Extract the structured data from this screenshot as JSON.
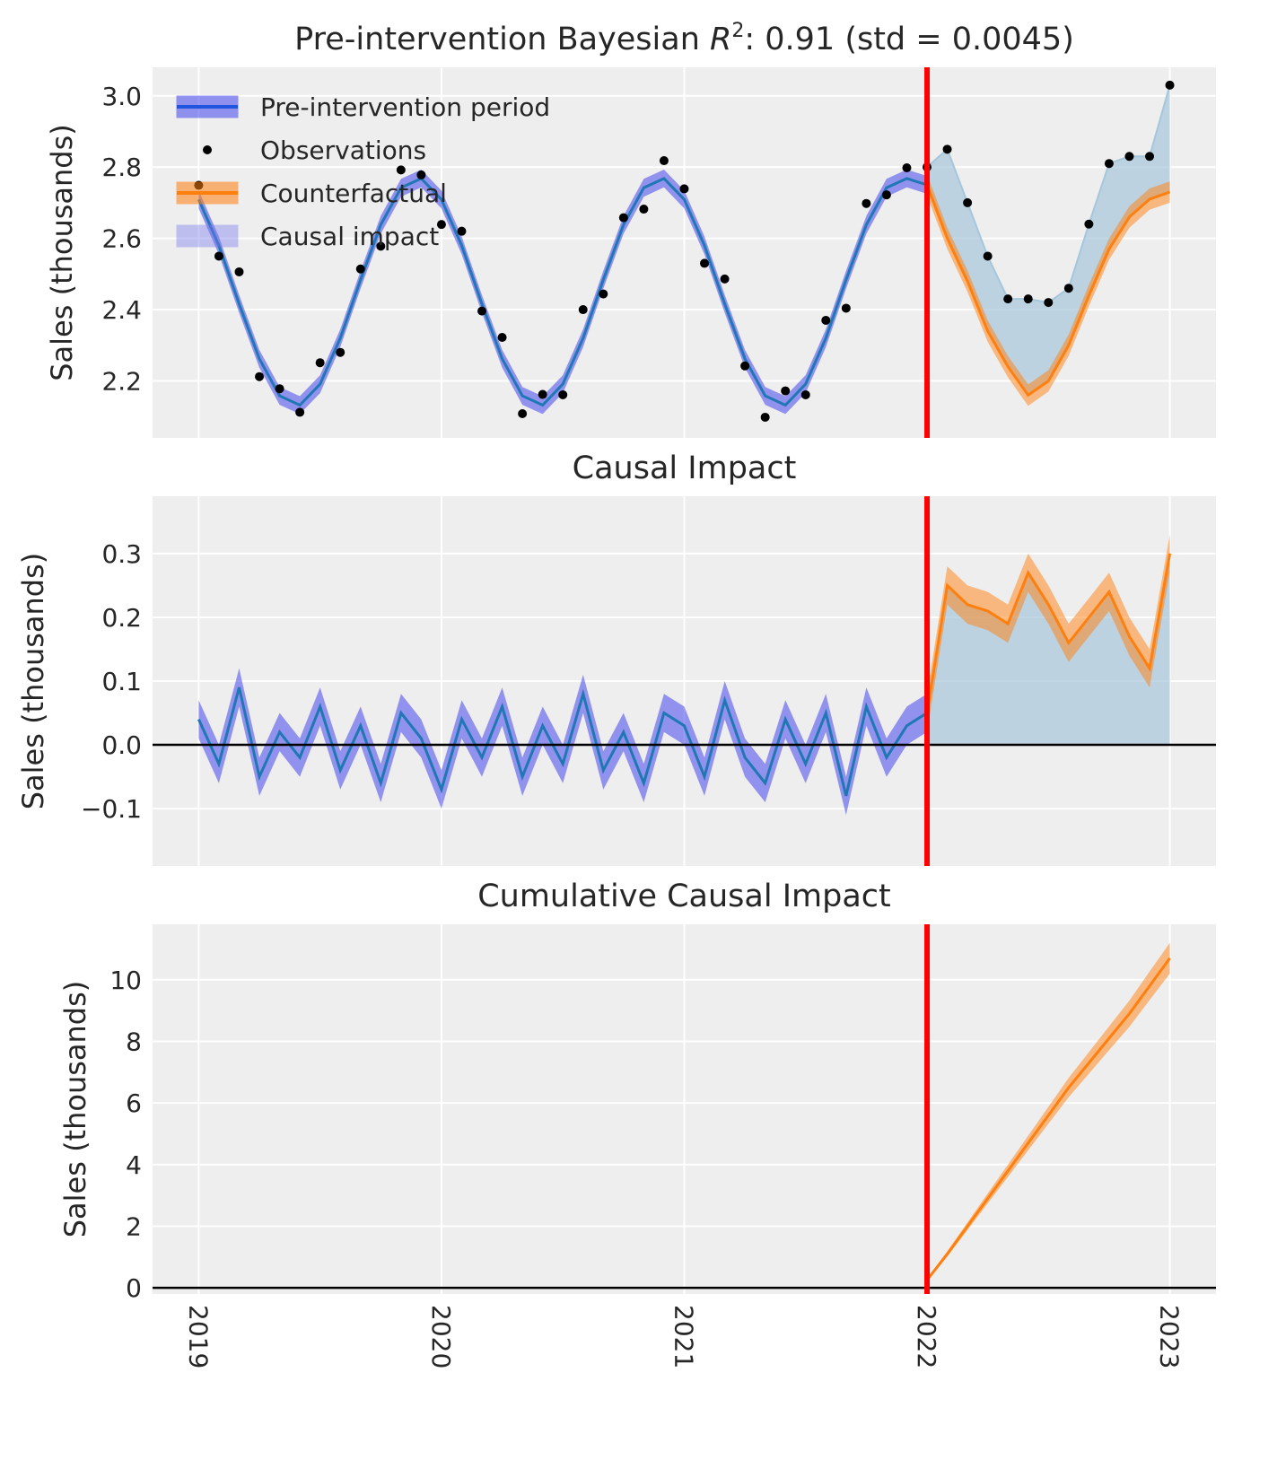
{
  "chart_data": [
    {
      "type": "line",
      "title": "Pre-intervention Bayesian R²: 0.91 (std = 0.0045)",
      "title_parts": {
        "prefix": "Pre-intervention Bayesian ",
        "r": "R",
        "sup": "2",
        "suffix": ": 0.91 (std = 0.0045)"
      },
      "ylabel": "Sales (thousands)",
      "ylim": [
        2.04,
        3.08
      ],
      "yticks": [
        2.2,
        2.4,
        2.6,
        2.8,
        3.0
      ],
      "ytick_labels": [
        "2.2",
        "2.4",
        "2.6",
        "2.8",
        "3.0"
      ],
      "legend": {
        "placement": "top-left",
        "entries": [
          "Pre-intervention period",
          "Observations",
          "Counterfactual",
          "Causal impact"
        ]
      },
      "observations": [
        2.749,
        2.55,
        2.506,
        2.212,
        2.178,
        2.112,
        2.251,
        2.28,
        2.514,
        2.578,
        2.792,
        2.778,
        2.639,
        2.62,
        2.396,
        2.322,
        2.108,
        2.162,
        2.161,
        2.4,
        2.444,
        2.658,
        2.682,
        2.818,
        2.739,
        2.53,
        2.486,
        2.242,
        2.098,
        2.172,
        2.161,
        2.37,
        2.404,
        2.698,
        2.722,
        2.798,
        2.8,
        2.85,
        2.7,
        2.55,
        2.43,
        2.43,
        2.42,
        2.46,
        2.64,
        2.81,
        2.83,
        2.83,
        3.03
      ],
      "pre_fit": [
        2.709,
        2.58,
        2.416,
        2.262,
        2.158,
        2.132,
        2.191,
        2.32,
        2.484,
        2.638,
        2.742,
        2.768,
        2.709,
        2.58,
        2.416,
        2.262,
        2.158,
        2.132,
        2.191,
        2.32,
        2.484,
        2.638,
        2.742,
        2.768,
        2.709,
        2.58,
        2.416,
        2.262,
        2.158,
        2.132,
        2.191,
        2.32,
        2.484,
        2.638,
        2.742,
        2.768,
        2.75
      ],
      "pre_fit_band": 0.025,
      "counterfactual": [
        2.75,
        2.6,
        2.48,
        2.34,
        2.24,
        2.16,
        2.2,
        2.3,
        2.44,
        2.57,
        2.66,
        2.71,
        2.73
      ],
      "counterfactual_band": 0.03
    },
    {
      "type": "line",
      "title": "Causal Impact",
      "ylabel": "Sales (thousands)",
      "ylim": [
        -0.19,
        0.39
      ],
      "yticks": [
        -0.1,
        0.0,
        0.1,
        0.2,
        0.3
      ],
      "ytick_labels": [
        "−0.1",
        "0.0",
        "0.1",
        "0.2",
        "0.3"
      ],
      "pre_impact": [
        0.04,
        -0.03,
        0.09,
        -0.05,
        0.02,
        -0.02,
        0.06,
        -0.04,
        0.03,
        -0.06,
        0.05,
        0.01,
        -0.07,
        0.04,
        -0.02,
        0.06,
        -0.05,
        0.03,
        -0.03,
        0.08,
        -0.04,
        0.02,
        -0.06,
        0.05,
        0.03,
        -0.05,
        0.07,
        -0.02,
        -0.06,
        0.04,
        -0.03,
        0.05,
        -0.08,
        0.06,
        -0.02,
        0.03,
        0.05
      ],
      "post_impact": [
        0.05,
        0.25,
        0.22,
        0.21,
        0.19,
        0.27,
        0.22,
        0.16,
        0.2,
        0.24,
        0.17,
        0.12,
        0.3
      ],
      "band": 0.03
    },
    {
      "type": "line",
      "title": "Cumulative Causal Impact",
      "ylabel": "Sales (thousands)",
      "ylim": [
        -0.2,
        11.8
      ],
      "yticks": [
        0,
        2,
        4,
        6,
        8,
        10
      ],
      "ytick_labels": [
        "0",
        "2",
        "4",
        "6",
        "8",
        "10"
      ],
      "cumulative": [
        0.25,
        1.1,
        2.0,
        2.9,
        3.8,
        4.7,
        5.6,
        6.5,
        7.3,
        8.1,
        8.9,
        9.8,
        10.7
      ],
      "band_end": 0.5
    }
  ],
  "x_axis": {
    "start": 2019.0,
    "step_years": 0.08333,
    "intervention": 2022.0,
    "xlim": [
      2018.81,
      2023.19
    ],
    "ticks": [
      2019,
      2020,
      2021,
      2022,
      2023
    ],
    "tick_labels": [
      "2019",
      "2020",
      "2021",
      "2022",
      "2023"
    ]
  },
  "colors": {
    "background": "#eeeeee",
    "pre_fit": "#1f77b4",
    "pre_band": "#3333ee",
    "counterfactual": "#ff7f0e",
    "impact_fill": "#a6c6dc",
    "intervention_line": "#ff0000",
    "observations": "#000000"
  }
}
